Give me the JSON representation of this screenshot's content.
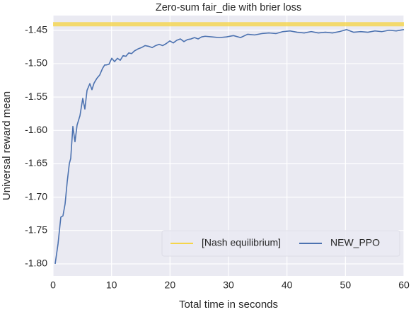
{
  "chart_data": {
    "type": "line",
    "title": "Zero-sum fair_die with brier loss",
    "x_label": "Total time in seconds",
    "y_label": "Universal reward mean",
    "xlim": [
      0,
      60
    ],
    "ylim": [
      -1.818,
      -1.428
    ],
    "xticks": [
      0,
      10,
      20,
      30,
      40,
      50,
      60
    ],
    "yticks": [
      {
        "value": -1.8,
        "label": "-1.80"
      },
      -1.75,
      {
        "value": -1.7,
        "label": "-1.70"
      },
      -1.65,
      {
        "value": -1.6,
        "label": "-1.60"
      },
      -1.55,
      {
        "value": -1.5,
        "label": "-1.50"
      },
      -1.45
    ],
    "grid": true,
    "legend": "lower right",
    "series": [
      {
        "name": "[Nash equilibrium]",
        "color": "#f5d54a",
        "x": [
          0,
          60
        ],
        "values": [
          -1.441,
          -1.441
        ]
      },
      {
        "name": "NEW_PPO",
        "color": "#4c72b0",
        "x": [
          0.36,
          0.85,
          1.33,
          1.69,
          2.06,
          2.42,
          2.78,
          3.02,
          3.39,
          3.75,
          4.11,
          4.6,
          5.08,
          5.44,
          5.81,
          6.29,
          6.65,
          7.02,
          7.5,
          7.98,
          8.47,
          8.83,
          9.07,
          9.56,
          10.04,
          10.52,
          11.01,
          11.49,
          11.98,
          12.46,
          12.94,
          13.43,
          13.91,
          14.52,
          15.12,
          15.73,
          16.33,
          16.94,
          17.54,
          18.14,
          18.75,
          19.35,
          19.96,
          20.56,
          21.17,
          21.77,
          22.38,
          22.98,
          23.59,
          24.19,
          24.8,
          25.4,
          26.01,
          27.22,
          28.43,
          29.64,
          30.85,
          32.06,
          33.27,
          34.47,
          35.68,
          36.89,
          38.1,
          39.31,
          40.52,
          41.73,
          42.94,
          44.15,
          45.36,
          46.57,
          47.78,
          48.99,
          50.2,
          51.41,
          52.62,
          53.83,
          55.04,
          56.25,
          57.46,
          58.67,
          60
        ],
        "values": [
          -1.8,
          -1.77,
          -1.73,
          -1.728,
          -1.71,
          -1.677,
          -1.65,
          -1.642,
          -1.594,
          -1.617,
          -1.592,
          -1.578,
          -1.552,
          -1.568,
          -1.54,
          -1.53,
          -1.539,
          -1.529,
          -1.522,
          -1.517,
          -1.507,
          -1.502,
          -1.502,
          -1.501,
          -1.492,
          -1.497,
          -1.492,
          -1.495,
          -1.488,
          -1.489,
          -1.484,
          -1.485,
          -1.481,
          -1.478,
          -1.476,
          -1.473,
          -1.474,
          -1.476,
          -1.473,
          -1.471,
          -1.473,
          -1.47,
          -1.466,
          -1.469,
          -1.465,
          -1.463,
          -1.467,
          -1.464,
          -1.463,
          -1.461,
          -1.463,
          -1.46,
          -1.459,
          -1.46,
          -1.461,
          -1.46,
          -1.458,
          -1.461,
          -1.456,
          -1.457,
          -1.455,
          -1.454,
          -1.455,
          -1.452,
          -1.451,
          -1.453,
          -1.454,
          -1.452,
          -1.454,
          -1.453,
          -1.454,
          -1.452,
          -1.449,
          -1.453,
          -1.452,
          -1.453,
          -1.451,
          -1.452,
          -1.45,
          -1.451,
          -1.449
        ]
      }
    ]
  }
}
